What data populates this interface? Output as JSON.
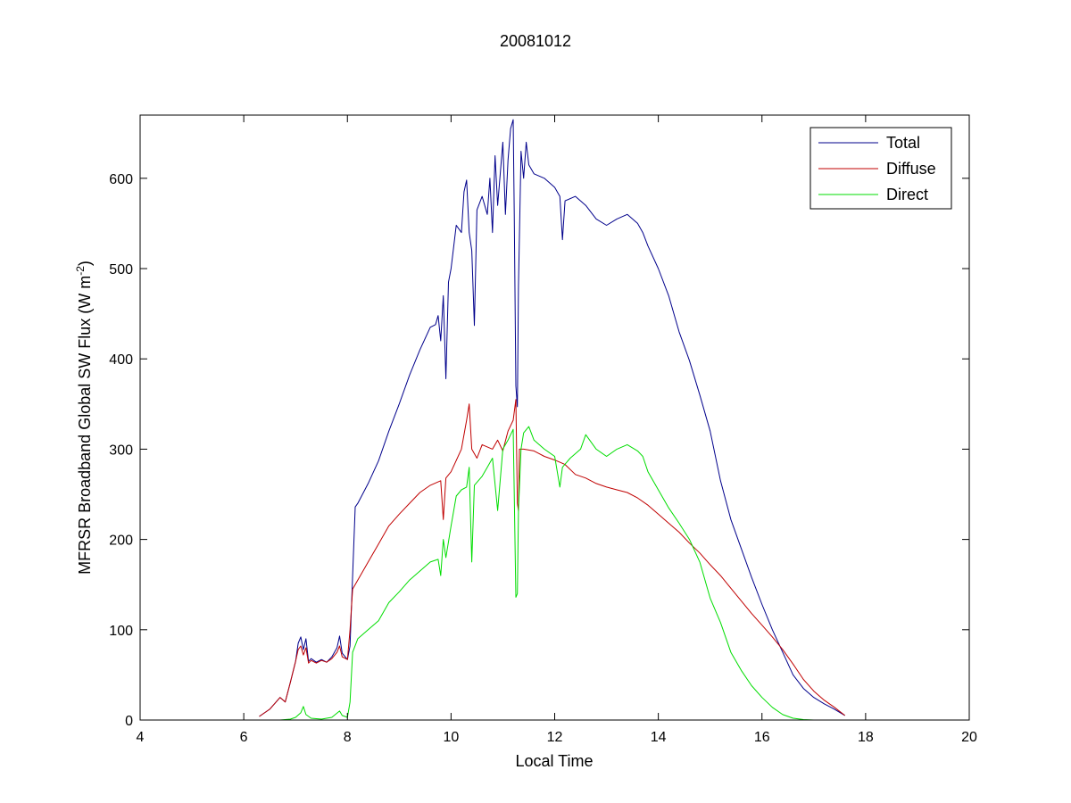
{
  "chart_data": {
    "type": "line",
    "title": "20081012",
    "xlabel": "Local Time",
    "ylabel_main": "MFRSR Broadband Global SW Flux (W m",
    "ylabel_sup": "-2",
    "ylabel_end": ")",
    "xlim": [
      4,
      20
    ],
    "ylim": [
      0,
      670
    ],
    "xticks": [
      4,
      6,
      8,
      10,
      12,
      14,
      16,
      18,
      20
    ],
    "yticks": [
      0,
      100,
      200,
      300,
      400,
      500,
      600
    ],
    "grid": false,
    "legend_position": "top-right",
    "series": [
      {
        "name": "Total",
        "color": "#00008b",
        "points": [
          [
            6.3,
            4
          ],
          [
            6.5,
            12
          ],
          [
            6.7,
            25
          ],
          [
            6.8,
            20
          ],
          [
            6.9,
            42
          ],
          [
            7.0,
            65
          ],
          [
            7.05,
            85
          ],
          [
            7.1,
            92
          ],
          [
            7.15,
            78
          ],
          [
            7.2,
            90
          ],
          [
            7.25,
            65
          ],
          [
            7.3,
            68
          ],
          [
            7.4,
            64
          ],
          [
            7.5,
            67
          ],
          [
            7.6,
            64
          ],
          [
            7.7,
            70
          ],
          [
            7.8,
            80
          ],
          [
            7.85,
            93
          ],
          [
            7.9,
            74
          ],
          [
            8.0,
            67
          ],
          [
            8.05,
            82
          ],
          [
            8.1,
            160
          ],
          [
            8.15,
            236
          ],
          [
            8.2,
            240
          ],
          [
            8.4,
            262
          ],
          [
            8.6,
            287
          ],
          [
            8.8,
            320
          ],
          [
            9.0,
            350
          ],
          [
            9.2,
            382
          ],
          [
            9.4,
            410
          ],
          [
            9.6,
            435
          ],
          [
            9.7,
            438
          ],
          [
            9.75,
            448
          ],
          [
            9.8,
            420
          ],
          [
            9.85,
            470
          ],
          [
            9.9,
            378
          ],
          [
            9.95,
            485
          ],
          [
            10.0,
            500
          ],
          [
            10.1,
            548
          ],
          [
            10.2,
            540
          ],
          [
            10.25,
            585
          ],
          [
            10.3,
            598
          ],
          [
            10.35,
            540
          ],
          [
            10.4,
            520
          ],
          [
            10.45,
            437
          ],
          [
            10.5,
            565
          ],
          [
            10.6,
            580
          ],
          [
            10.7,
            560
          ],
          [
            10.75,
            600
          ],
          [
            10.8,
            540
          ],
          [
            10.85,
            625
          ],
          [
            10.9,
            570
          ],
          [
            11.0,
            640
          ],
          [
            11.05,
            560
          ],
          [
            11.1,
            620
          ],
          [
            11.15,
            655
          ],
          [
            11.2,
            665
          ],
          [
            11.22,
            560
          ],
          [
            11.25,
            370
          ],
          [
            11.28,
            347
          ],
          [
            11.3,
            480
          ],
          [
            11.35,
            630
          ],
          [
            11.4,
            600
          ],
          [
            11.45,
            640
          ],
          [
            11.5,
            615
          ],
          [
            11.6,
            605
          ],
          [
            11.8,
            600
          ],
          [
            12.0,
            590
          ],
          [
            12.1,
            580
          ],
          [
            12.15,
            532
          ],
          [
            12.2,
            575
          ],
          [
            12.4,
            580
          ],
          [
            12.6,
            570
          ],
          [
            12.8,
            555
          ],
          [
            13.0,
            548
          ],
          [
            13.2,
            555
          ],
          [
            13.4,
            560
          ],
          [
            13.6,
            550
          ],
          [
            13.7,
            540
          ],
          [
            13.8,
            525
          ],
          [
            14.0,
            500
          ],
          [
            14.2,
            470
          ],
          [
            14.4,
            430
          ],
          [
            14.6,
            398
          ],
          [
            14.8,
            360
          ],
          [
            15.0,
            320
          ],
          [
            15.2,
            265
          ],
          [
            15.4,
            222
          ],
          [
            15.6,
            190
          ],
          [
            15.8,
            158
          ],
          [
            16.0,
            128
          ],
          [
            16.2,
            100
          ],
          [
            16.4,
            75
          ],
          [
            16.6,
            50
          ],
          [
            16.8,
            35
          ],
          [
            17.0,
            25
          ],
          [
            17.2,
            18
          ],
          [
            17.4,
            12
          ],
          [
            17.6,
            5
          ]
        ]
      },
      {
        "name": "Diffuse",
        "color": "#c00000",
        "points": [
          [
            6.3,
            4
          ],
          [
            6.5,
            12
          ],
          [
            6.7,
            25
          ],
          [
            6.8,
            20
          ],
          [
            6.9,
            42
          ],
          [
            7.0,
            65
          ],
          [
            7.05,
            78
          ],
          [
            7.1,
            82
          ],
          [
            7.15,
            72
          ],
          [
            7.2,
            80
          ],
          [
            7.25,
            63
          ],
          [
            7.3,
            66
          ],
          [
            7.4,
            63
          ],
          [
            7.5,
            66
          ],
          [
            7.6,
            64
          ],
          [
            7.7,
            68
          ],
          [
            7.8,
            75
          ],
          [
            7.85,
            82
          ],
          [
            7.9,
            70
          ],
          [
            8.0,
            67
          ],
          [
            8.05,
            100
          ],
          [
            8.1,
            145
          ],
          [
            8.2,
            155
          ],
          [
            8.4,
            175
          ],
          [
            8.6,
            195
          ],
          [
            8.8,
            215
          ],
          [
            9.0,
            228
          ],
          [
            9.2,
            240
          ],
          [
            9.4,
            252
          ],
          [
            9.6,
            260
          ],
          [
            9.8,
            265
          ],
          [
            9.85,
            222
          ],
          [
            9.9,
            268
          ],
          [
            10.0,
            275
          ],
          [
            10.2,
            300
          ],
          [
            10.3,
            332
          ],
          [
            10.35,
            350
          ],
          [
            10.4,
            300
          ],
          [
            10.5,
            290
          ],
          [
            10.6,
            305
          ],
          [
            10.8,
            300
          ],
          [
            10.9,
            310
          ],
          [
            11.0,
            298
          ],
          [
            11.1,
            320
          ],
          [
            11.2,
            332
          ],
          [
            11.25,
            355
          ],
          [
            11.28,
            240
          ],
          [
            11.3,
            232
          ],
          [
            11.32,
            300
          ],
          [
            11.4,
            300
          ],
          [
            11.6,
            298
          ],
          [
            11.8,
            292
          ],
          [
            12.0,
            288
          ],
          [
            12.2,
            283
          ],
          [
            12.4,
            272
          ],
          [
            12.6,
            268
          ],
          [
            12.8,
            262
          ],
          [
            13.0,
            258
          ],
          [
            13.2,
            255
          ],
          [
            13.4,
            252
          ],
          [
            13.6,
            246
          ],
          [
            13.8,
            238
          ],
          [
            14.0,
            228
          ],
          [
            14.2,
            218
          ],
          [
            14.4,
            208
          ],
          [
            14.6,
            196
          ],
          [
            14.8,
            185
          ],
          [
            15.0,
            172
          ],
          [
            15.2,
            160
          ],
          [
            15.4,
            146
          ],
          [
            15.6,
            132
          ],
          [
            15.8,
            118
          ],
          [
            16.0,
            105
          ],
          [
            16.2,
            92
          ],
          [
            16.4,
            78
          ],
          [
            16.6,
            62
          ],
          [
            16.8,
            45
          ],
          [
            17.0,
            32
          ],
          [
            17.2,
            22
          ],
          [
            17.4,
            14
          ],
          [
            17.6,
            5
          ]
        ]
      },
      {
        "name": "Direct",
        "color": "#00dd00",
        "points": [
          [
            6.7,
            0
          ],
          [
            6.9,
            1
          ],
          [
            7.0,
            3
          ],
          [
            7.1,
            8
          ],
          [
            7.15,
            15
          ],
          [
            7.2,
            6
          ],
          [
            7.3,
            2
          ],
          [
            7.5,
            1
          ],
          [
            7.7,
            3
          ],
          [
            7.85,
            10
          ],
          [
            7.9,
            5
          ],
          [
            8.0,
            3
          ],
          [
            8.05,
            20
          ],
          [
            8.1,
            75
          ],
          [
            8.2,
            90
          ],
          [
            8.4,
            100
          ],
          [
            8.6,
            110
          ],
          [
            8.8,
            130
          ],
          [
            9.0,
            142
          ],
          [
            9.2,
            155
          ],
          [
            9.4,
            165
          ],
          [
            9.6,
            175
          ],
          [
            9.75,
            178
          ],
          [
            9.8,
            160
          ],
          [
            9.85,
            200
          ],
          [
            9.9,
            180
          ],
          [
            10.0,
            215
          ],
          [
            10.1,
            248
          ],
          [
            10.2,
            255
          ],
          [
            10.3,
            258
          ],
          [
            10.35,
            280
          ],
          [
            10.4,
            175
          ],
          [
            10.45,
            260
          ],
          [
            10.6,
            270
          ],
          [
            10.7,
            280
          ],
          [
            10.8,
            290
          ],
          [
            10.9,
            232
          ],
          [
            11.0,
            300
          ],
          [
            11.1,
            310
          ],
          [
            11.2,
            322
          ],
          [
            11.22,
            250
          ],
          [
            11.25,
            136
          ],
          [
            11.28,
            140
          ],
          [
            11.3,
            232
          ],
          [
            11.35,
            300
          ],
          [
            11.4,
            318
          ],
          [
            11.5,
            325
          ],
          [
            11.6,
            310
          ],
          [
            11.8,
            300
          ],
          [
            12.0,
            292
          ],
          [
            12.1,
            258
          ],
          [
            12.15,
            280
          ],
          [
            12.3,
            290
          ],
          [
            12.5,
            300
          ],
          [
            12.6,
            316
          ],
          [
            12.8,
            300
          ],
          [
            13.0,
            292
          ],
          [
            13.2,
            300
          ],
          [
            13.4,
            305
          ],
          [
            13.6,
            298
          ],
          [
            13.7,
            292
          ],
          [
            13.8,
            275
          ],
          [
            14.0,
            255
          ],
          [
            14.2,
            235
          ],
          [
            14.4,
            218
          ],
          [
            14.6,
            200
          ],
          [
            14.8,
            175
          ],
          [
            15.0,
            135
          ],
          [
            15.2,
            108
          ],
          [
            15.4,
            75
          ],
          [
            15.6,
            55
          ],
          [
            15.8,
            38
          ],
          [
            16.0,
            25
          ],
          [
            16.2,
            14
          ],
          [
            16.4,
            6
          ],
          [
            16.6,
            2
          ],
          [
            16.8,
            0.5
          ],
          [
            17.0,
            0
          ],
          [
            17.2,
            0
          ]
        ]
      }
    ]
  }
}
